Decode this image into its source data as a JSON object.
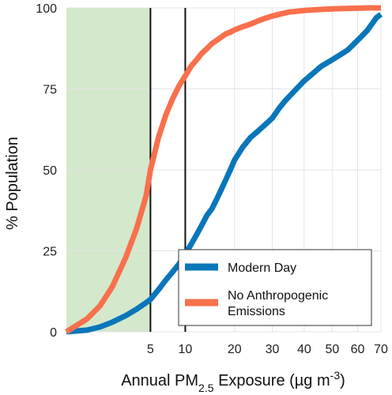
{
  "chart_data": {
    "type": "line",
    "title": "",
    "xlabel": {
      "prefix": "Annual  PM",
      "sub": "2.5",
      "mid": " Exposure (µg m",
      "sup": "-3",
      "suffix": ")"
    },
    "ylabel": "% Population",
    "xlim": [
      0,
      70
    ],
    "ylim": [
      0,
      100
    ],
    "x_scale": "sqrt",
    "x_ticks": [
      5,
      10,
      20,
      30,
      40,
      50,
      60,
      70
    ],
    "y_ticks": [
      0,
      25,
      50,
      75,
      100
    ],
    "x_tick_labels": [
      "5",
      "10",
      "20",
      "30",
      "40",
      "50",
      "60",
      "70"
    ],
    "y_tick_labels": [
      "0",
      "25",
      "50",
      "75",
      "100"
    ],
    "grid": true,
    "reference_lines": [
      5,
      10
    ],
    "shaded_region": {
      "x": [
        0,
        5
      ],
      "color": "#d4e8cc"
    },
    "legend_position": "lower-right",
    "series": [
      {
        "name": "Modern Day",
        "color": "#0a76ba",
        "x": [
          0,
          0.3,
          0.8,
          1.5,
          2.5,
          3.5,
          4.5,
          5,
          6,
          7,
          8,
          9,
          10,
          11,
          12,
          13,
          14,
          15,
          16,
          17,
          18,
          19,
          20,
          22,
          24,
          26,
          28,
          30,
          32,
          34,
          36,
          38,
          40,
          42,
          44,
          46,
          48,
          50,
          52,
          54,
          56,
          58,
          60,
          62,
          64,
          66,
          68,
          70
        ],
        "y": [
          0,
          0.5,
          1.5,
          3,
          5,
          7,
          9,
          10,
          13,
          16,
          18.5,
          21,
          24,
          27,
          30,
          33,
          36,
          38,
          41,
          44,
          47,
          50,
          53,
          57,
          60,
          62,
          64,
          66,
          69,
          71.5,
          73.5,
          75.5,
          77.5,
          79,
          80.5,
          82,
          83,
          84,
          85,
          86,
          87,
          88.5,
          90,
          91.5,
          93,
          95,
          97,
          98
        ]
      },
      {
        "name": "No Anthropogenic Emissions",
        "color": "#f8704c",
        "x": [
          0,
          0.3,
          0.8,
          1.5,
          2.5,
          3.5,
          4.5,
          5,
          6,
          7,
          8,
          9,
          10,
          11,
          12,
          13,
          14,
          15,
          16,
          17,
          18,
          19,
          20,
          22,
          24,
          26,
          28,
          30,
          32,
          35,
          40,
          45,
          50,
          55,
          60,
          65,
          70
        ],
        "y": [
          0,
          4,
          8,
          14,
          23,
          32,
          42,
          50,
          60,
          67,
          72,
          76,
          79,
          82,
          84,
          86,
          87.5,
          89,
          90,
          91,
          92,
          92.5,
          93.2,
          94.2,
          95,
          96,
          96.8,
          97.5,
          98,
          98.7,
          99.2,
          99.5,
          99.7,
          99.8,
          99.9,
          100,
          100
        ]
      }
    ]
  }
}
